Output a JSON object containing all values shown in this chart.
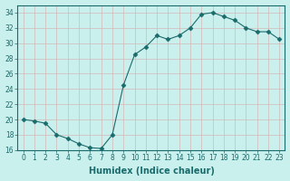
{
  "x": [
    0,
    1,
    2,
    3,
    4,
    5,
    6,
    7,
    8,
    9,
    10,
    11,
    12,
    13,
    14,
    15,
    16,
    17,
    18,
    19,
    20,
    21,
    22,
    23
  ],
  "y": [
    20,
    19.8,
    19.5,
    18,
    17.5,
    16.8,
    16.3,
    16.2,
    18,
    24.5,
    28.5,
    29.5,
    31,
    30.5,
    31,
    32,
    33.8,
    34,
    33.5,
    33,
    32,
    31.5,
    31.5,
    30.5
  ],
  "line_color": "#1a6b6b",
  "marker": "D",
  "marker_size": 2.5,
  "bg_color": "#caf0ee",
  "grid_color": "#d4b8b8",
  "xlabel": "Humidex (Indice chaleur)",
  "ylim": [
    16,
    35
  ],
  "yticks": [
    16,
    18,
    20,
    22,
    24,
    26,
    28,
    30,
    32,
    34
  ],
  "xticks": [
    0,
    1,
    2,
    3,
    4,
    5,
    6,
    7,
    8,
    9,
    10,
    11,
    12,
    13,
    14,
    15,
    16,
    17,
    18,
    19,
    20,
    21,
    22,
    23
  ],
  "xlabel_fontsize": 7,
  "tick_fontsize": 5.5
}
